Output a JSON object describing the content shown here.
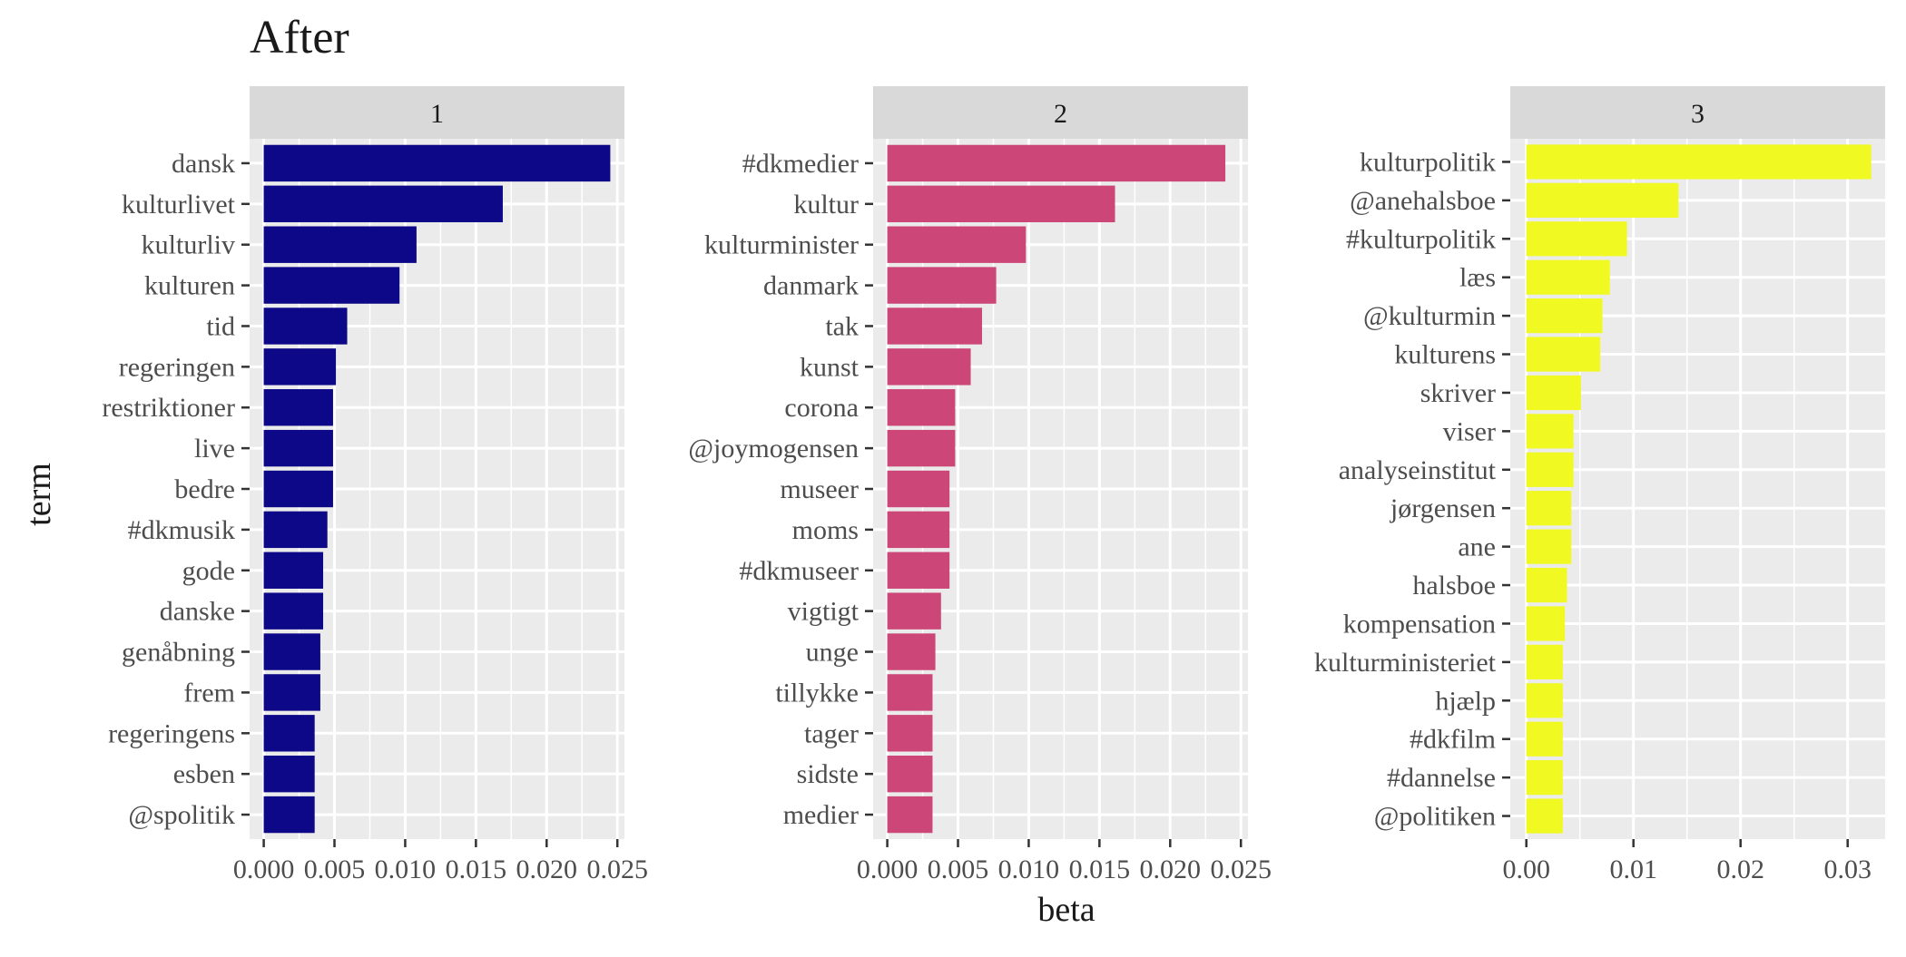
{
  "chart_data": {
    "type": "bar",
    "title": "After",
    "xlabel": "beta",
    "ylabel": "term",
    "orientation": "horizontal",
    "grid": true,
    "panels": [
      {
        "strip": "1",
        "color": "#0d0887",
        "xlim": [
          -0.001,
          0.0255
        ],
        "ticks": [
          0,
          0.005,
          0.01,
          0.015,
          0.02,
          0.025
        ],
        "tick_labels": [
          "0.000",
          "0.005",
          "0.010",
          "0.015",
          "0.020",
          "0.025"
        ],
        "terms": [
          "dansk",
          "kulturlivet",
          "kulturliv",
          "kulturen",
          "tid",
          "regeringen",
          "restriktioner",
          "live",
          "bedre",
          "#dkmusik",
          "gode",
          "danske",
          "genåbning",
          "frem",
          "regeringens",
          "esben",
          "@spolitik"
        ],
        "values": [
          0.0245,
          0.0169,
          0.0108,
          0.0096,
          0.0059,
          0.0051,
          0.0049,
          0.0049,
          0.0049,
          0.0045,
          0.0042,
          0.0042,
          0.004,
          0.004,
          0.0036,
          0.0036,
          0.0036
        ]
      },
      {
        "strip": "2",
        "color": "#cc4778",
        "xlim": [
          -0.001,
          0.0255
        ],
        "ticks": [
          0,
          0.005,
          0.01,
          0.015,
          0.02,
          0.025
        ],
        "tick_labels": [
          "0.000",
          "0.005",
          "0.010",
          "0.015",
          "0.020",
          "0.025"
        ],
        "terms": [
          "#dkmedier",
          "kultur",
          "kulturminister",
          "danmark",
          "tak",
          "kunst",
          "corona",
          "@joymogensen",
          "museer",
          "moms",
          "#dkmuseer",
          "vigtigt",
          "unge",
          "tillykke",
          "tager",
          "sidste",
          "medier"
        ],
        "values": [
          0.0239,
          0.0161,
          0.0098,
          0.0077,
          0.0067,
          0.0059,
          0.0048,
          0.0048,
          0.0044,
          0.0044,
          0.0044,
          0.0038,
          0.0034,
          0.0032,
          0.0032,
          0.0032,
          0.0032
        ]
      },
      {
        "strip": "3",
        "color": "#f0f921",
        "xlim": [
          -0.0015,
          0.0335
        ],
        "ticks": [
          0,
          0.01,
          0.02,
          0.03
        ],
        "tick_labels": [
          "0.00",
          "0.01",
          "0.02",
          "0.03"
        ],
        "terms": [
          "kulturpolitik",
          "@anehalsboe",
          "#kulturpolitik",
          "læs",
          "@kulturmin",
          "kulturens",
          "skriver",
          "viser",
          "analyseinstitut",
          "jørgensen",
          "ane",
          "halsboe",
          "kompensation",
          "kulturministeriet",
          "hjælp",
          "#dkfilm",
          "#dannelse",
          "@politiken"
        ],
        "values": [
          0.0322,
          0.0142,
          0.0094,
          0.0078,
          0.0071,
          0.0069,
          0.0051,
          0.0044,
          0.0044,
          0.0042,
          0.0042,
          0.0038,
          0.0036,
          0.0034,
          0.0034,
          0.0034,
          0.0034,
          0.0034
        ]
      }
    ]
  }
}
